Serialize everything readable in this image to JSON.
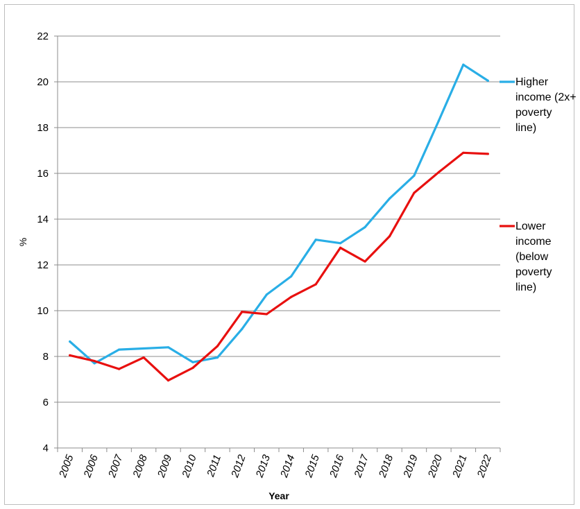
{
  "chart_data": {
    "type": "line",
    "title": "",
    "xlabel": "Year",
    "ylabel": "%",
    "ylim": [
      4,
      22
    ],
    "yticks": [
      "4",
      "6",
      "8",
      "10",
      "12",
      "14",
      "16",
      "18",
      "20",
      "22"
    ],
    "categories": [
      "2005",
      "2006",
      "2007",
      "2008",
      "2009",
      "2010",
      "2011",
      "2012",
      "2013",
      "2014",
      "2015",
      "2016",
      "2017",
      "2018",
      "2019",
      "2020",
      "2021",
      "2022"
    ],
    "grid": true,
    "legend_position": "right",
    "series": [
      {
        "name": "Higher income (2x+ poverty line)",
        "legend_lines": [
          "Higher",
          "income (2x+",
          "poverty",
          "line)"
        ],
        "color": "#29aee6",
        "values": [
          8.65,
          7.7,
          8.3,
          8.35,
          8.4,
          7.75,
          7.95,
          9.2,
          10.7,
          11.5,
          13.1,
          12.95,
          13.65,
          14.9,
          15.9,
          18.3,
          20.75,
          20.05
        ]
      },
      {
        "name": "Lower income (below poverty line)",
        "legend_lines": [
          "Lower",
          "income",
          "(below",
          "poverty",
          "line)"
        ],
        "color": "#e8100f",
        "values": [
          8.05,
          7.8,
          7.45,
          7.95,
          6.95,
          7.5,
          8.45,
          9.95,
          9.85,
          10.6,
          11.15,
          12.75,
          12.15,
          13.25,
          15.15,
          16.05,
          16.9,
          16.85
        ]
      }
    ]
  }
}
